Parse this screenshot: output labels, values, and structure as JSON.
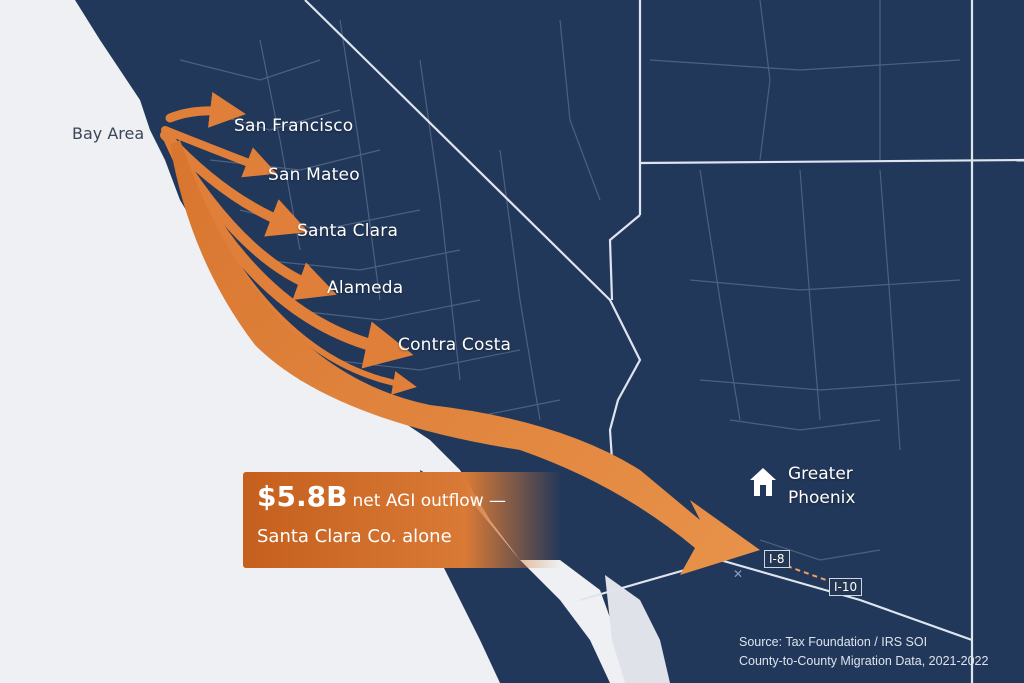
{
  "origin": {
    "label": "Bay Area"
  },
  "counties": [
    {
      "id": "sf",
      "label": "San Francisco"
    },
    {
      "id": "sm",
      "label": "San Mateo"
    },
    {
      "id": "sc",
      "label": "Santa Clara"
    },
    {
      "id": "al",
      "label": "Alameda"
    },
    {
      "id": "cc",
      "label": "Contra Costa"
    }
  ],
  "destination": {
    "icon": "house-icon",
    "line1": "Greater",
    "line2": "Phoenix"
  },
  "callout": {
    "amount": "$5.8B",
    "rest": "net AGI outflow —",
    "line2": "Santa Clara Co. alone"
  },
  "highways": {
    "i8": "I-8",
    "i10": "I-10"
  },
  "source": {
    "line1": "Source: Tax Foundation / IRS SOI",
    "line2": "County-to-County Migration Data, 2021-2022"
  },
  "colors": {
    "land": "#22385a",
    "ocean": "#eef0f3",
    "arrow": "#e07f3a",
    "arrow_dark": "#c86a26",
    "border": "#dfe5ee",
    "county_line": "#4d6080"
  }
}
